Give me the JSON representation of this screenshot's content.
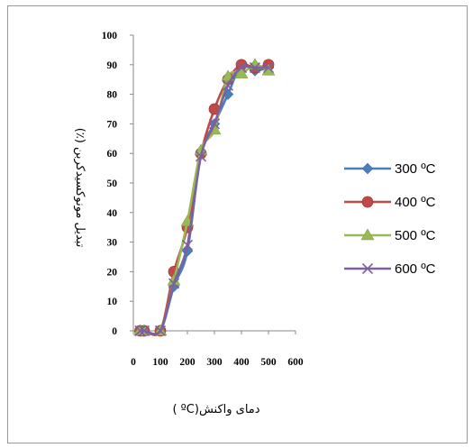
{
  "chart_data": {
    "type": "line",
    "title": "",
    "xlabel": "دمای واکنش(ºC )",
    "ylabel": "تبدیل مونوکسیدکربن (٪)",
    "x_ticks": [
      "0",
      "100",
      "200",
      "300",
      "400",
      "500",
      "600"
    ],
    "y_ticks": [
      "0",
      "10",
      "20",
      "30",
      "40",
      "50",
      "60",
      "70",
      "80",
      "90",
      "100"
    ],
    "xlim": [
      0,
      600
    ],
    "ylim": [
      0,
      100
    ],
    "grid": false,
    "legend_position": "right",
    "series": [
      {
        "name": "300 ºC",
        "color": "#4a7ebb",
        "marker": "diamond",
        "x": [
          25,
          40,
          100,
          150,
          200,
          250,
          300,
          350,
          400,
          450,
          500
        ],
        "y": [
          0,
          0,
          0,
          15,
          27,
          60,
          70,
          80,
          90,
          88,
          89
        ]
      },
      {
        "name": "400 ºC",
        "color": "#be4b48",
        "marker": "circle",
        "x": [
          25,
          40,
          100,
          150,
          200,
          250,
          300,
          350,
          400,
          450,
          500
        ],
        "y": [
          0,
          0,
          0,
          20,
          35,
          60,
          75,
          85,
          90,
          89,
          90
        ]
      },
      {
        "name": "500 ºC",
        "color": "#98b954",
        "marker": "triangle",
        "x": [
          25,
          40,
          100,
          150,
          200,
          250,
          300,
          350,
          400,
          450,
          500
        ],
        "y": [
          0,
          0,
          0,
          17,
          37,
          61,
          68,
          86,
          87,
          90,
          88
        ]
      },
      {
        "name": "600 ºC",
        "color": "#7d60a0",
        "marker": "x",
        "x": [
          25,
          40,
          100,
          150,
          200,
          250,
          300,
          350,
          400,
          450,
          500
        ],
        "y": [
          0,
          0,
          0,
          16,
          29,
          59,
          70,
          83,
          89,
          89,
          89
        ]
      }
    ]
  }
}
